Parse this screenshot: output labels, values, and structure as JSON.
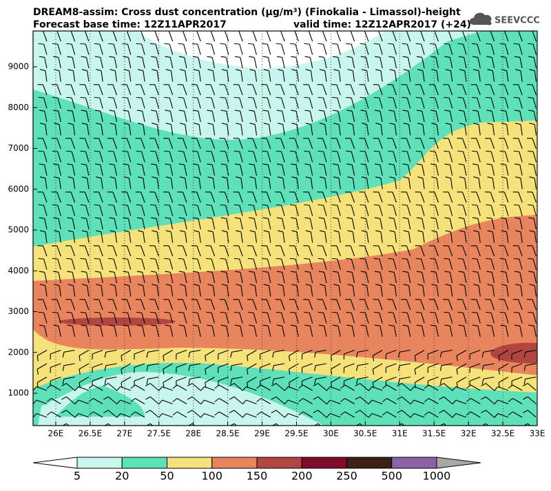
{
  "chart_data": {
    "type": "contour",
    "title": "DREAM8-assim: Cross dust concentration (μg/m³) (Finokalia - Limassol)-height",
    "subtitle_left": "Forecast base time: 12Z11APR2017",
    "subtitle_right": "valid time: 12Z12APR2017 (+24)",
    "logo": "SEEVCCC",
    "xlim": [
      25.67,
      33
    ],
    "ylim": [
      207,
      9878
    ],
    "xticks": [
      {
        "value": 26,
        "label": "26E"
      },
      {
        "value": 26.5,
        "label": "26.5E"
      },
      {
        "value": 27,
        "label": "27E"
      },
      {
        "value": 27.5,
        "label": "27.5E"
      },
      {
        "value": 28,
        "label": "28E"
      },
      {
        "value": 28.5,
        "label": "28.5E"
      },
      {
        "value": 29,
        "label": "29E"
      },
      {
        "value": 29.5,
        "label": "29.5E"
      },
      {
        "value": 30,
        "label": "30E"
      },
      {
        "value": 30.5,
        "label": "30.5E"
      },
      {
        "value": 31,
        "label": "31E"
      },
      {
        "value": 31.5,
        "label": "31.5E"
      },
      {
        "value": 32,
        "label": "32E"
      },
      {
        "value": 32.5,
        "label": "32.5E"
      },
      {
        "value": 33,
        "label": "33E"
      }
    ],
    "yticks": [
      1000,
      2000,
      3000,
      4000,
      5000,
      6000,
      7000,
      8000,
      9000
    ],
    "colorbar": {
      "levels": [
        5,
        20,
        50,
        100,
        150,
        200,
        250,
        500,
        1000
      ],
      "colors": [
        "#c8f5ee",
        "#5ee0b8",
        "#f5e27a",
        "#e8845e",
        "#b0463f",
        "#7e0b2a",
        "#3c2214",
        "#8a62a6"
      ],
      "under_color": "#ffffff",
      "over_color": "#a8a8a8"
    }
  }
}
